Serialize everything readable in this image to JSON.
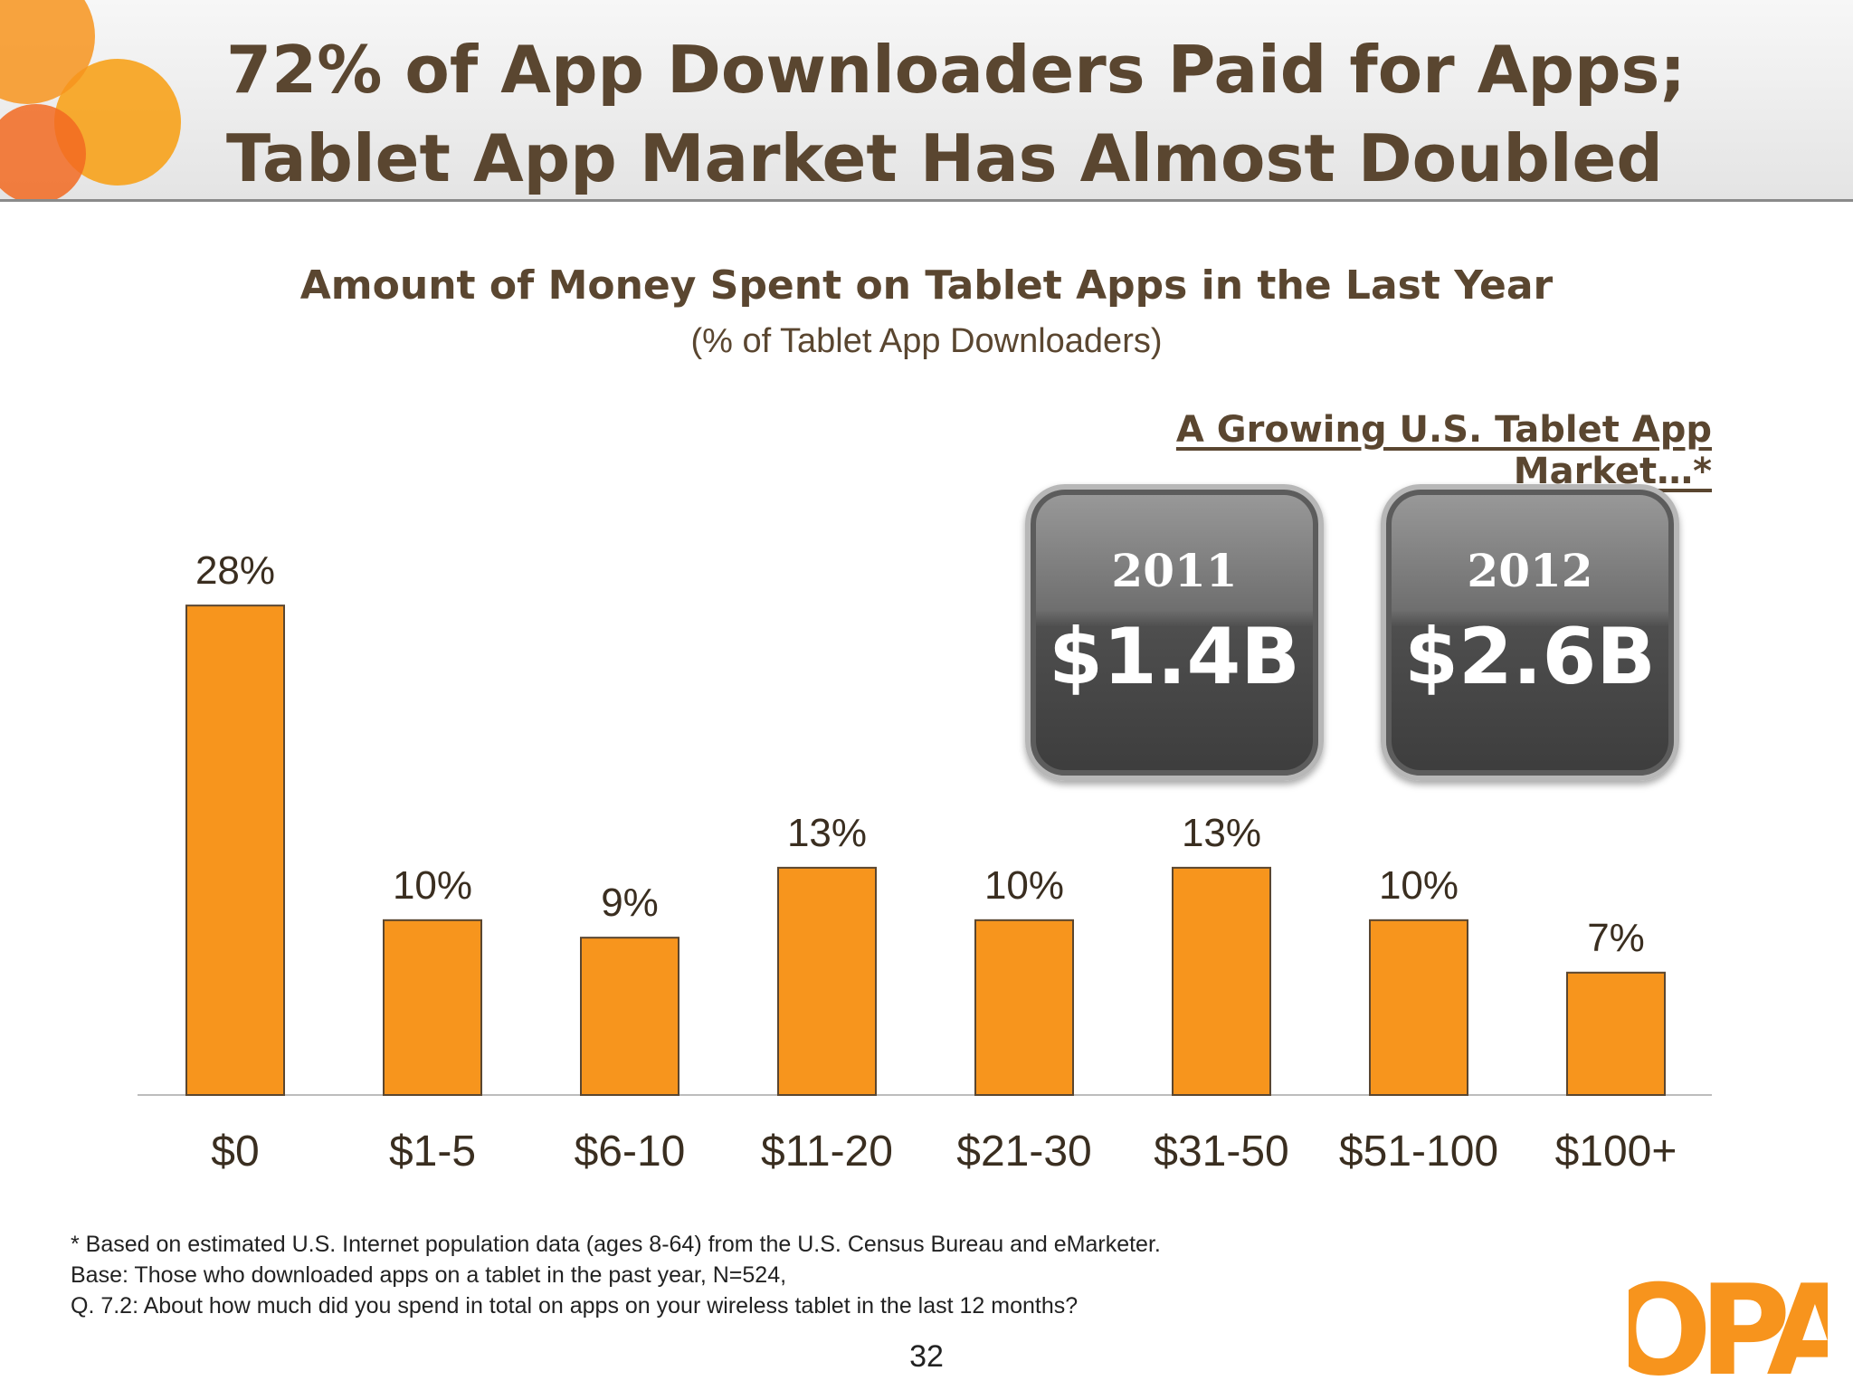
{
  "slide": {
    "title_line1": "72% of App Downloaders Paid for Apps;",
    "title_line2": "Tablet App Market Has Almost Doubled",
    "page_number": "32"
  },
  "market": {
    "heading": "A Growing U.S. Tablet App Market…*",
    "tiles": [
      {
        "year": "2011",
        "value": "$1.4B"
      },
      {
        "year": "2012",
        "value": "$2.6B"
      }
    ]
  },
  "footnotes": [
    "* Based on estimated U.S. Internet population data (ages 8-64) from the U.S. Census Bureau and eMarketer.",
    "Base:  Those who downloaded apps on a tablet in the past year, N=524,",
    "Q. 7.2:   About how much did you spend in total on apps on your wireless tablet in the last 12 months?"
  ],
  "logo": {
    "text": "OPA"
  },
  "colors": {
    "bar": "#f7951d",
    "bar_border": "#5a4630",
    "text": "#5a4630",
    "accent": "#f7941d"
  },
  "chart_data": {
    "type": "bar",
    "title": "Amount of Money Spent on Tablet Apps in the Last Year",
    "subtitle": "(% of Tablet App Downloaders)",
    "categories": [
      "$0",
      "$1-5",
      "$6-10",
      "$11-20",
      "$21-30",
      "$31-50",
      "$51-100",
      "$100+"
    ],
    "values": [
      28,
      10,
      9,
      13,
      10,
      13,
      10,
      7
    ],
    "value_labels": [
      "28%",
      "10%",
      "9%",
      "13%",
      "10%",
      "13%",
      "10%",
      "7%"
    ],
    "ylim": [
      0,
      30
    ],
    "grid": false,
    "legend": "none"
  }
}
